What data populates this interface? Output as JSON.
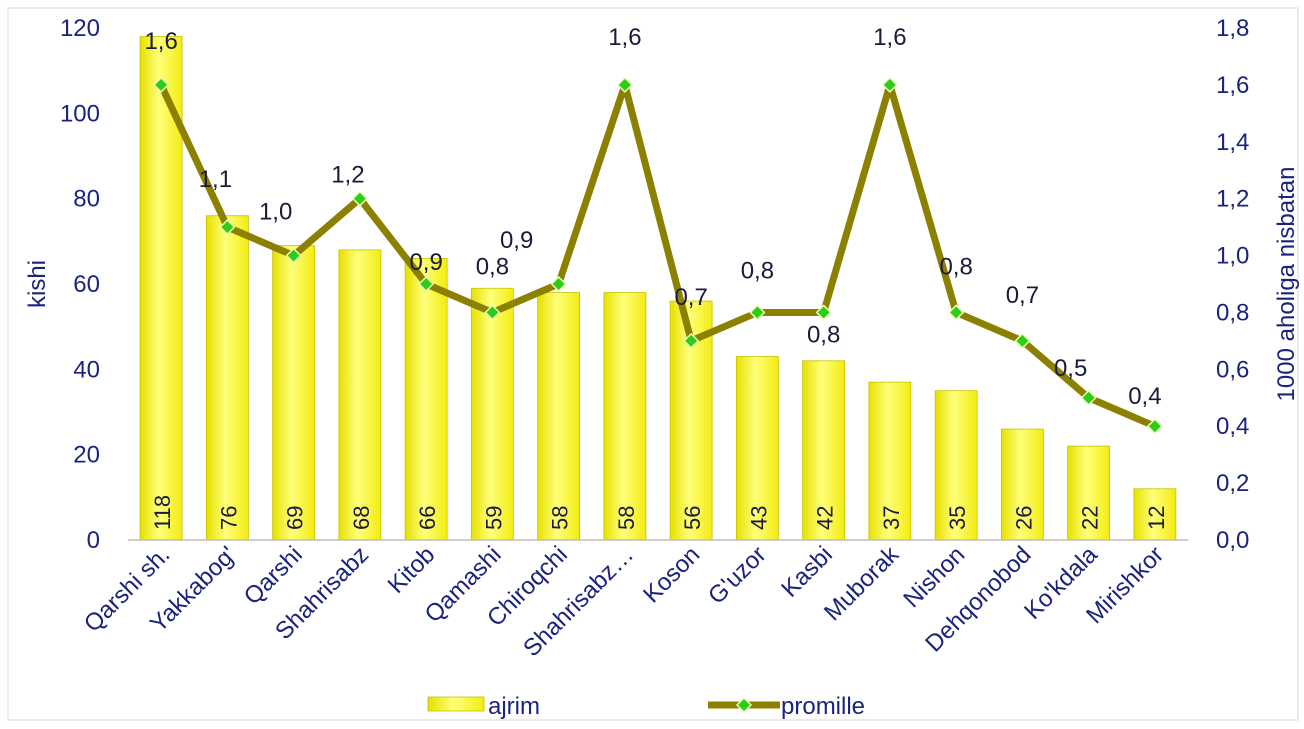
{
  "chart_data": {
    "type": "bar",
    "categories": [
      "Qarshi sh.",
      "Yakkabog'",
      "Qarshi",
      "Shahrisabz",
      "Kitob",
      "Qamashi",
      "Chiroqchi",
      "Shahrisabz…",
      "Koson",
      "G'uzor",
      "Kasbi",
      "Muborak",
      "Nishon",
      "Dehqonobod",
      "Ko'kdala",
      "Mirishkor"
    ],
    "series": [
      {
        "name": "ajrim",
        "type": "bar",
        "axis": "left",
        "values": [
          118,
          76,
          69,
          68,
          66,
          59,
          58,
          58,
          56,
          43,
          42,
          37,
          35,
          26,
          22,
          12
        ],
        "labels": [
          "118",
          "76",
          "69",
          "68",
          "66",
          "59",
          "58",
          "58",
          "56",
          "43",
          "42",
          "37",
          "35",
          "26",
          "22",
          "12"
        ]
      },
      {
        "name": "promille",
        "type": "line",
        "axis": "right",
        "values": [
          1.6,
          1.1,
          1.0,
          1.2,
          0.9,
          0.8,
          0.9,
          1.6,
          0.7,
          0.8,
          0.8,
          1.6,
          0.8,
          0.7,
          0.5,
          0.4
        ],
        "labels": [
          "1,6",
          "1,1",
          "1,0",
          "1,2",
          "0,9",
          "0,8",
          "0,9",
          "1,6",
          "0,7",
          "0,8",
          "0,8",
          "1,6",
          "0,8",
          "0,7",
          "0,5",
          "0,4"
        ]
      }
    ],
    "ylabel": "kishi",
    "y2label": "1000 aholiga nisbatan",
    "ylim": [
      0,
      120
    ],
    "y2lim": [
      0,
      1.8
    ],
    "yticks": [
      "0",
      "20",
      "40",
      "60",
      "80",
      "100",
      "120"
    ],
    "y2ticks": [
      "0,0",
      "0,2",
      "0,4",
      "0,6",
      "0,8",
      "1,0",
      "1,2",
      "1,4",
      "1,6",
      "1,8"
    ],
    "grid": false,
    "legend_position": "bottom",
    "colors": {
      "bar_fill": "#f7f21e",
      "bar_highlight": "#ffffaa",
      "bar_edge": "#c8c200",
      "line": "#8b8000",
      "marker": "#2ecc1a",
      "text": "#1a237e",
      "axis": "#bdbdbd"
    }
  }
}
